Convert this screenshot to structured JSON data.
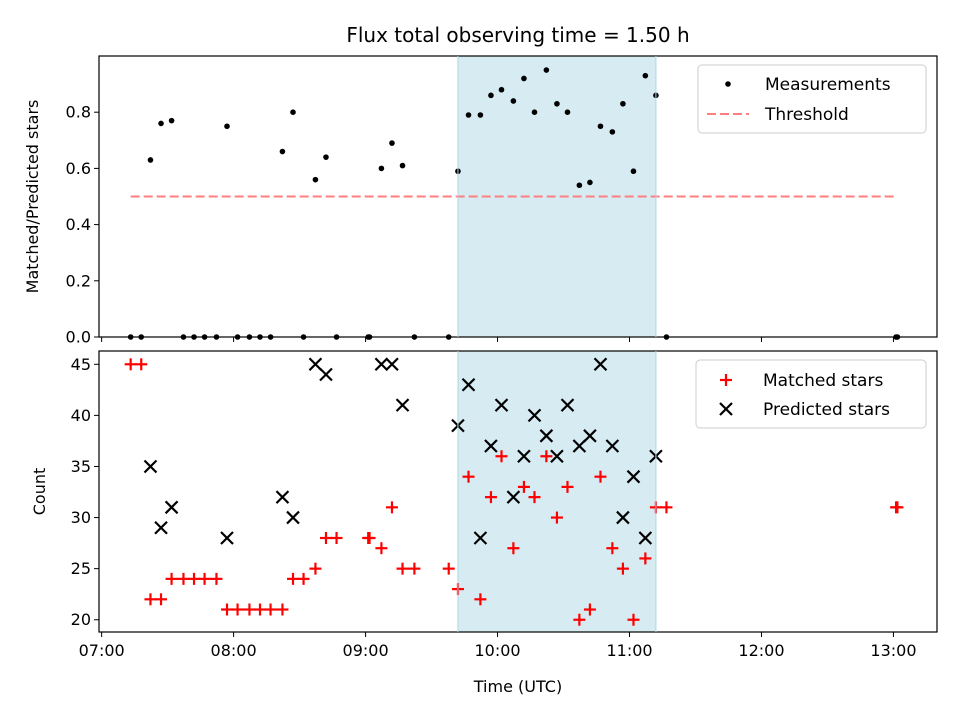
{
  "chart_data": [
    {
      "type": "scatter",
      "title": "Flux total observing time = 1.50 h",
      "xlabel": "",
      "ylabel": "Matched/Predicted stars",
      "ylim": [
        0,
        1.0
      ],
      "yticks": [
        "0.0",
        "0.2",
        "0.4",
        "0.6",
        "0.8"
      ],
      "xlim_hours": [
        6.98,
        13.33
      ],
      "highlight_span_hours": [
        9.7,
        11.2
      ],
      "legend": "top-right",
      "series": [
        {
          "name": "Measurements",
          "marker": "dot",
          "color": "#000000",
          "x": [
            7.22,
            7.3,
            7.37,
            7.45,
            7.53,
            7.62,
            7.7,
            7.78,
            7.87,
            7.95,
            8.03,
            8.12,
            8.2,
            8.28,
            8.37,
            8.45,
            8.53,
            8.62,
            8.7,
            8.78,
            9.02,
            9.03,
            9.12,
            9.2,
            9.28,
            9.37,
            9.63,
            9.7,
            9.78,
            9.87,
            9.95,
            10.03,
            10.12,
            10.2,
            10.28,
            10.37,
            10.45,
            10.53,
            10.62,
            10.7,
            10.78,
            10.87,
            10.95,
            11.03,
            11.12,
            11.2,
            11.28,
            13.02,
            13.03
          ],
          "y": [
            0.0,
            0.0,
            0.63,
            0.76,
            0.77,
            0.0,
            0.0,
            0.0,
            0.0,
            0.75,
            0.0,
            0.0,
            0.0,
            0.0,
            0.66,
            0.8,
            0.0,
            0.56,
            0.64,
            0.0,
            0.0,
            0.0,
            0.6,
            0.69,
            0.61,
            0.0,
            0.0,
            0.59,
            0.79,
            0.79,
            0.86,
            0.88,
            0.84,
            0.92,
            0.8,
            0.95,
            0.83,
            0.8,
            0.54,
            0.55,
            0.75,
            0.73,
            0.83,
            0.59,
            0.93,
            0.86,
            0.0,
            0.0,
            0.0
          ]
        },
        {
          "name": "Threshold",
          "marker": "dashed-line",
          "color": "#ff7f7f",
          "x": [
            7.22,
            13.03
          ],
          "y": [
            0.5,
            0.5
          ]
        }
      ]
    },
    {
      "type": "scatter",
      "title": "",
      "xlabel": "Time (UTC)",
      "ylabel": "Count",
      "ylim": [
        18.8,
        46.3
      ],
      "yticks": [
        20,
        25,
        30,
        35,
        40,
        45
      ],
      "xticks": [
        "07:00",
        "08:00",
        "09:00",
        "10:00",
        "11:00",
        "12:00",
        "13:00"
      ],
      "xlim_hours": [
        6.98,
        13.33
      ],
      "highlight_span_hours": [
        9.7,
        11.2
      ],
      "legend": "top-right",
      "series": [
        {
          "name": "Matched stars",
          "marker": "plus",
          "color": "#ff0000",
          "x": [
            7.22,
            7.3,
            7.37,
            7.45,
            7.53,
            7.62,
            7.7,
            7.78,
            7.87,
            7.95,
            8.03,
            8.12,
            8.2,
            8.28,
            8.37,
            8.45,
            8.53,
            8.62,
            8.7,
            8.78,
            9.02,
            9.03,
            9.12,
            9.2,
            9.28,
            9.37,
            9.63,
            9.7,
            9.78,
            9.87,
            9.95,
            10.03,
            10.12,
            10.2,
            10.28,
            10.37,
            10.45,
            10.53,
            10.62,
            10.7,
            10.78,
            10.87,
            10.95,
            11.03,
            11.12,
            11.2,
            11.28,
            13.02,
            13.03
          ],
          "y": [
            45,
            45,
            22,
            22,
            24,
            24,
            24,
            24,
            24,
            21,
            21,
            21,
            21,
            21,
            21,
            24,
            24,
            25,
            28,
            28,
            28,
            28,
            27,
            31,
            25,
            25,
            25,
            23,
            34,
            22,
            32,
            36,
            27,
            33,
            32,
            36,
            30,
            33,
            20,
            21,
            34,
            27,
            25,
            20,
            26,
            31,
            31,
            31,
            31
          ]
        },
        {
          "name": "Predicted stars",
          "marker": "x",
          "color": "#000000",
          "x": [
            7.37,
            7.45,
            7.53,
            7.95,
            8.37,
            8.45,
            8.62,
            8.7,
            9.12,
            9.2,
            9.28,
            9.7,
            9.78,
            9.87,
            9.95,
            10.03,
            10.12,
            10.2,
            10.28,
            10.37,
            10.45,
            10.53,
            10.62,
            10.7,
            10.78,
            10.87,
            10.95,
            11.03,
            11.12,
            11.2
          ],
          "y": [
            35,
            29,
            31,
            28,
            32,
            30,
            45,
            44,
            45,
            45,
            41,
            39,
            43,
            28,
            37,
            41,
            32,
            36,
            40,
            38,
            36,
            41,
            37,
            38,
            45,
            37,
            30,
            34,
            28,
            36
          ]
        }
      ]
    }
  ]
}
